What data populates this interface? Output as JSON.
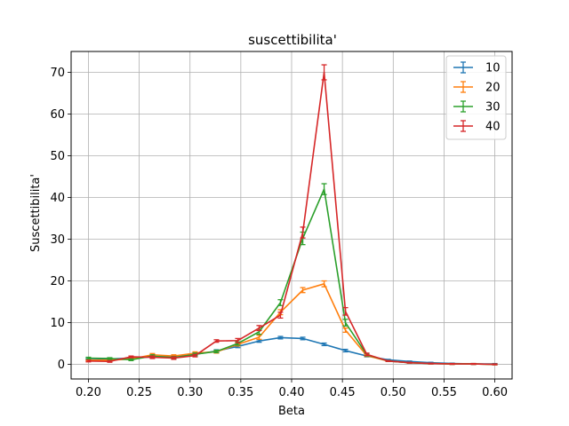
{
  "chart_data": {
    "type": "line",
    "title": "suscettibilita'",
    "xlabel": "Beta",
    "ylabel": "Suscettibilita'",
    "xlim": [
      0.183,
      0.617
    ],
    "ylim": [
      -3.5,
      75
    ],
    "xticks": [
      0.2,
      0.25,
      0.3,
      0.35,
      0.4,
      0.45,
      0.5,
      0.55,
      0.6
    ],
    "xtick_labels": [
      "0.20",
      "0.25",
      "0.30",
      "0.35",
      "0.40",
      "0.45",
      "0.50",
      "0.55",
      "0.60"
    ],
    "yticks": [
      0,
      10,
      20,
      30,
      40,
      50,
      60,
      70
    ],
    "ytick_labels": [
      "0",
      "10",
      "20",
      "30",
      "40",
      "50",
      "60",
      "70"
    ],
    "grid": true,
    "legend_position": "top-right",
    "x": [
      0.2,
      0.221,
      0.242,
      0.263,
      0.284,
      0.305,
      0.326,
      0.347,
      0.368,
      0.389,
      0.411,
      0.432,
      0.453,
      0.474,
      0.495,
      0.516,
      0.537,
      0.558,
      0.579,
      0.6
    ],
    "series": [
      {
        "name": "10",
        "color": "#1f77b4",
        "values": [
          1.4,
          1.3,
          1.5,
          1.8,
          1.9,
          2.4,
          3.2,
          4.3,
          5.6,
          6.4,
          6.2,
          4.8,
          3.3,
          2.0,
          1.1,
          0.7,
          0.4,
          0.2,
          0.1,
          0.1
        ],
        "errors": [
          0.2,
          0.2,
          0.2,
          0.2,
          0.2,
          0.3,
          0.3,
          0.3,
          0.3,
          0.3,
          0.3,
          0.3,
          0.3,
          0.2,
          0.1,
          0.1,
          0.1,
          0.1,
          0.1,
          0.1
        ]
      },
      {
        "name": "20",
        "color": "#ff7f0e",
        "values": [
          1.0,
          1.0,
          1.3,
          2.3,
          2.0,
          2.7,
          3.0,
          4.8,
          6.5,
          12.5,
          17.8,
          19.3,
          8.2,
          2.1,
          0.8,
          0.4,
          0.2,
          0.1,
          0.1,
          0.0
        ],
        "errors": [
          0.2,
          0.2,
          0.2,
          0.3,
          0.3,
          0.3,
          0.3,
          0.4,
          0.5,
          0.6,
          0.6,
          0.7,
          0.5,
          0.2,
          0.1,
          0.1,
          0.1,
          0.1,
          0.1,
          0.1
        ]
      },
      {
        "name": "30",
        "color": "#2ca02c",
        "values": [
          1.5,
          1.4,
          1.1,
          2.0,
          1.6,
          2.4,
          3.1,
          5.0,
          7.8,
          14.8,
          30.2,
          42.0,
          10.0,
          2.3,
          0.8,
          0.4,
          0.2,
          0.1,
          0.1,
          0.0
        ],
        "errors": [
          0.2,
          0.2,
          0.2,
          0.3,
          0.3,
          0.3,
          0.3,
          0.4,
          0.6,
          0.7,
          1.5,
          1.3,
          0.8,
          0.3,
          0.1,
          0.1,
          0.1,
          0.1,
          0.1,
          0.1
        ]
      },
      {
        "name": "40",
        "color": "#d62728",
        "values": [
          0.8,
          0.7,
          1.8,
          1.7,
          1.5,
          2.1,
          5.6,
          5.7,
          8.7,
          11.8,
          31.6,
          70.0,
          12.7,
          2.4,
          0.8,
          0.4,
          0.2,
          0.1,
          0.1,
          0.0
        ],
        "errors": [
          0.2,
          0.2,
          0.2,
          0.3,
          0.3,
          0.3,
          0.3,
          0.5,
          0.6,
          0.7,
          1.3,
          1.8,
          0.9,
          0.3,
          0.1,
          0.1,
          0.1,
          0.1,
          0.1,
          0.1
        ]
      }
    ]
  }
}
